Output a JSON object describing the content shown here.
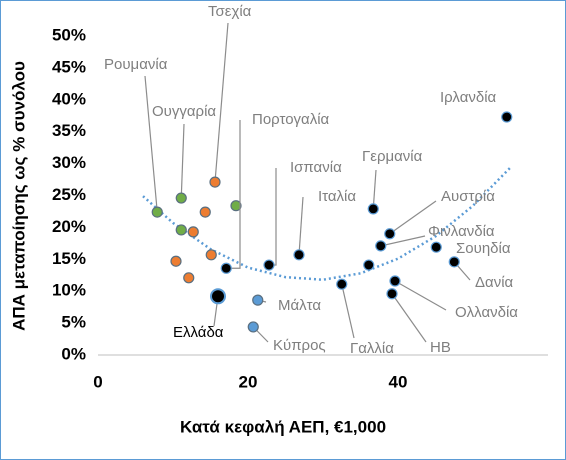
{
  "chart_data": {
    "type": "scatter",
    "xlabel": "Κατά κεφαλή ΑΕΠ, €1,000",
    "ylabel": "ΑΠΑ μεταποίησης ως % συνόλου",
    "xlim": [
      0,
      60
    ],
    "xticks": [
      0,
      20,
      40
    ],
    "ylim": [
      0,
      50
    ],
    "yticks": [
      {
        "value": 0,
        "label": "0%"
      },
      {
        "value": 5,
        "label": "5%"
      },
      {
        "value": 10,
        "label": "10%"
      },
      {
        "value": 15,
        "label": "15%"
      },
      {
        "value": 20,
        "label": "20%"
      },
      {
        "value": 25,
        "label": "25%"
      },
      {
        "value": 30,
        "label": "30%"
      },
      {
        "value": 35,
        "label": "35%"
      },
      {
        "value": 40,
        "label": "40%"
      },
      {
        "value": 45,
        "label": "45%"
      },
      {
        "value": 50,
        "label": "50%"
      }
    ],
    "series": [
      {
        "color": "#70ad47",
        "x": [
          7.9,
          11.1,
          11.1,
          18.4
        ],
        "values": [
          22.4,
          24.6,
          19.6,
          23.4
        ],
        "labels": [
          "Ρουμανία",
          "Ουγγαρία",
          null,
          null
        ]
      },
      {
        "color": "#ed7d31",
        "x": [
          15.6,
          14.3,
          12.7,
          10.4,
          15.1,
          12.1
        ],
        "values": [
          27.1,
          22.4,
          19.3,
          14.7,
          15.7,
          12.1
        ],
        "labels": [
          "Τσεχία",
          null,
          null,
          null,
          null,
          null
        ]
      },
      {
        "color": "#5b9bd5",
        "x": [
          21.3,
          20.7
        ],
        "values": [
          8.6,
          4.4
        ],
        "labels": [
          "Μάλτα",
          "Κύπρος"
        ]
      },
      {
        "color": "#000000",
        "x": [
          17.1,
          22.8,
          26.8,
          36.7,
          38.9,
          37.7,
          45.1,
          47.5,
          36.1,
          32.5,
          39.6,
          39.2,
          54.5
        ],
        "values": [
          13.6,
          14.1,
          15.7,
          22.9,
          19.0,
          17.1,
          16.9,
          14.6,
          14.1,
          11.1,
          11.6,
          9.6,
          37.3
        ],
        "labels": [
          "Πορτογαλία",
          "Ισπανία",
          "Ιταλία",
          "Γερμανία",
          "Αυστρία",
          "Φινλανδία",
          "Σουηδία",
          "Δανία",
          null,
          "Γαλλία",
          "Ολλανδία",
          "ΗΒ",
          "Ιρλανδία"
        ]
      },
      {
        "color": "#000000",
        "x": [
          16.0
        ],
        "values": [
          9.2
        ],
        "labels": [
          "Ελλάδα"
        ]
      }
    ],
    "trendline": {
      "color": "#5b9bd5",
      "x": [
        6,
        10,
        15,
        20,
        25,
        30,
        35,
        40,
        45,
        50,
        55
      ],
      "values": [
        24.9,
        20.7,
        16.6,
        13.7,
        12.2,
        11.8,
        12.8,
        15.1,
        18.6,
        23.4,
        29.4
      ]
    }
  }
}
